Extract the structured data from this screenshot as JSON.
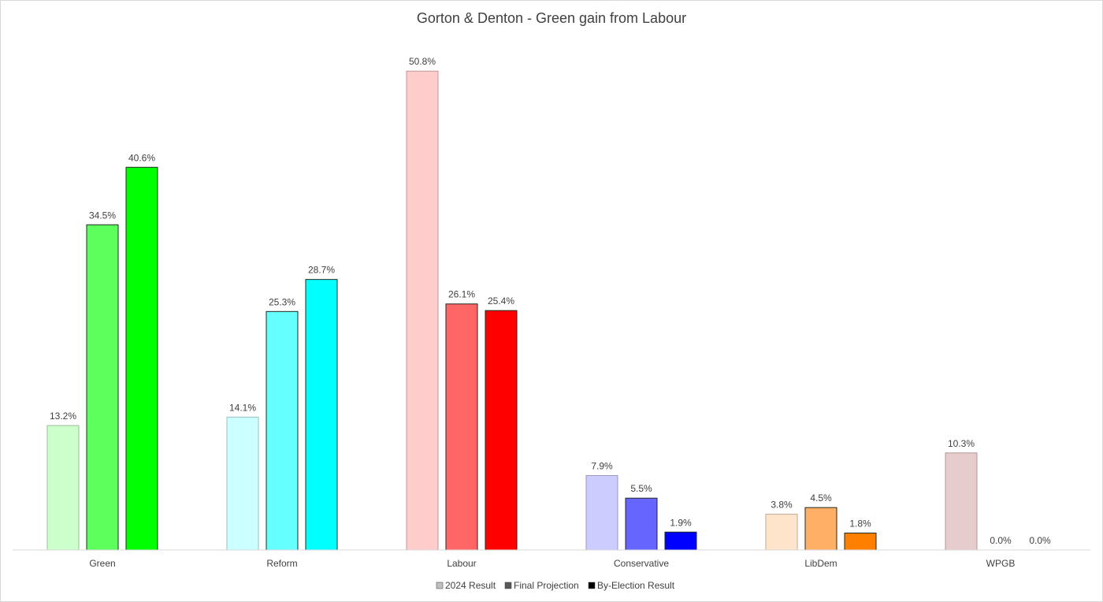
{
  "chart_data": {
    "type": "bar",
    "title": "Gorton & Denton - Green gain from Labour",
    "xlabel": "",
    "ylabel": "",
    "ylim": [
      0,
      55
    ],
    "grid": false,
    "legend_position": "bottom",
    "categories": [
      "Green",
      "Reform",
      "Labour",
      "Conservative",
      "LibDem",
      "WPGB"
    ],
    "series": [
      {
        "name": "2024 Result",
        "values": [
          13.2,
          14.1,
          50.8,
          7.9,
          3.8,
          10.3
        ],
        "labels": [
          "13.2%",
          "14.1%",
          "50.8%",
          "7.9%",
          "3.8%",
          "10.3%"
        ]
      },
      {
        "name": "Final Projection",
        "values": [
          34.5,
          25.3,
          26.1,
          5.5,
          4.5,
          0.0
        ],
        "labels": [
          "34.5%",
          "25.3%",
          "26.1%",
          "5.5%",
          "4.5%",
          "0.0%"
        ]
      },
      {
        "name": "By-Election Result",
        "values": [
          40.6,
          28.7,
          25.4,
          1.9,
          1.8,
          0.0
        ],
        "labels": [
          "40.6%",
          "28.7%",
          "25.4%",
          "1.9%",
          "1.8%",
          "0.0%"
        ]
      }
    ],
    "bar_colors": [
      [
        "#ccffcc",
        "#5cff5c",
        "#00ff00"
      ],
      [
        "#ccffff",
        "#66ffff",
        "#00ffff"
      ],
      [
        "#ffcccc",
        "#ff6666",
        "#ff0000"
      ],
      [
        "#ccccff",
        "#6666ff",
        "#0000ff"
      ],
      [
        "#ffe4cc",
        "#ffb066",
        "#ff8000"
      ],
      [
        "#e6cccc",
        "#b38080",
        "#800000"
      ]
    ],
    "legend_colors": [
      "#bfbfbf",
      "#595959",
      "#000000"
    ]
  }
}
